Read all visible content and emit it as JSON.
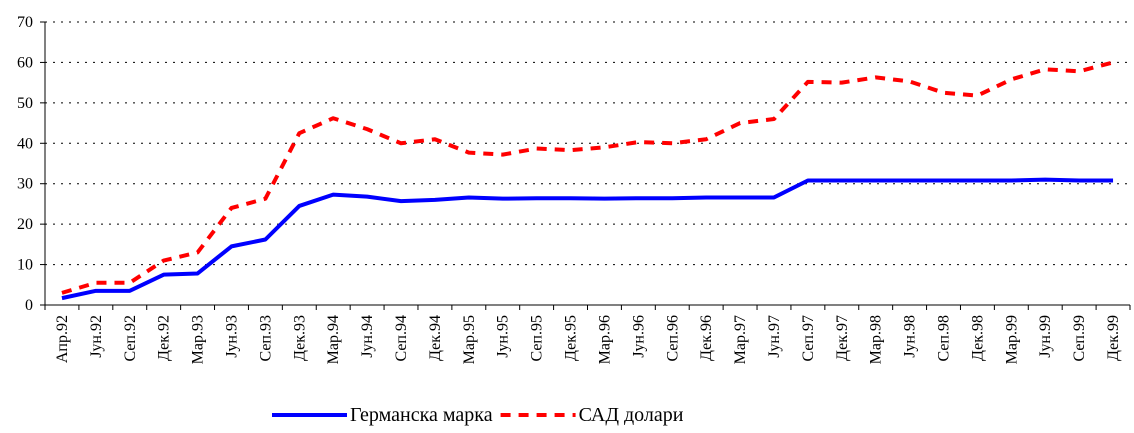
{
  "chart_data": {
    "type": "line",
    "categories": [
      "Апр.92",
      "Јун.92",
      "Сеп.92",
      "Дек.92",
      "Мар.93",
      "Јун.93",
      "Сеп.93",
      "Дек.93",
      "Мар.94",
      "Јун.94",
      "Сеп.94",
      "Дек.94",
      "Мар.95",
      "Јун.95",
      "Сеп.95",
      "Дек.95",
      "Мар.96",
      "Јун.96",
      "Сеп.96",
      "Дек.96",
      "Мар.97",
      "Јун.97",
      "Сеп.97",
      "Дек.97",
      "Мар.98",
      "Јун.98",
      "Сеп.98",
      "Дек.98",
      "Мар.99",
      "Јун.99",
      "Сеп.99",
      "Дек.99"
    ],
    "series": [
      {
        "name": "Германска марка",
        "color": "#0000ff",
        "dashed": false,
        "values": [
          1.7,
          3.5,
          3.5,
          7.5,
          7.8,
          14.5,
          16.2,
          24.5,
          27.3,
          26.8,
          25.7,
          26,
          26.6,
          26.3,
          26.4,
          26.4,
          26.3,
          26.4,
          26.4,
          26.6,
          26.6,
          26.6,
          30.8,
          30.8,
          30.8,
          30.8,
          30.8,
          30.8,
          30.8,
          31,
          30.8,
          30.8
        ]
      },
      {
        "name": "САД долари",
        "color": "#ff0000",
        "dashed": true,
        "values": [
          3,
          5.5,
          5.5,
          11,
          13,
          24,
          26.3,
          42.5,
          46.2,
          43.5,
          40,
          41,
          37.7,
          37.2,
          38.7,
          38.3,
          39,
          40.3,
          40,
          41,
          45,
          46,
          55.2,
          55,
          56.3,
          55.3,
          52.5,
          51.8,
          55.8,
          58.3,
          57.8,
          60
        ]
      }
    ],
    "ylim": [
      0,
      70
    ],
    "yticks": [
      0,
      10,
      20,
      30,
      40,
      50,
      60,
      70
    ],
    "grid": true,
    "legend": "bottom"
  }
}
